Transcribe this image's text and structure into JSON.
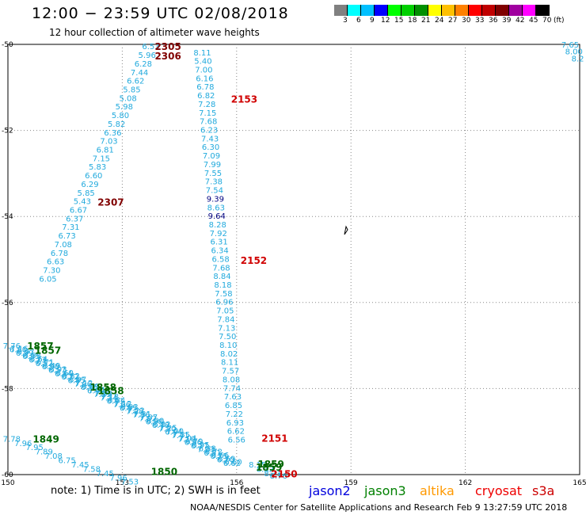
{
  "header": {
    "title": "12:00 − 23:59 UTC 02/08/2018",
    "subtitle": "12 hour collection of altimeter wave heights"
  },
  "legend": {
    "swatch_colors": [
      "#808080",
      "#00ffff",
      "#00c0ff",
      "#0000ff",
      "#00ff00",
      "#00d000",
      "#009000",
      "#ffff00",
      "#ffc000",
      "#ff8000",
      "#ff0000",
      "#c00000",
      "#800000",
      "#a000a0",
      "#ff00ff",
      "#000000"
    ],
    "labels": [
      "3",
      "6",
      "9",
      "12",
      "15",
      "18",
      "21",
      "24",
      "27",
      "30",
      "33",
      "36",
      "39",
      "42",
      "45",
      "70",
      "(ft)"
    ]
  },
  "note": "note:  1) Time is in UTC;  2) SWH is in feet",
  "satellites": [
    {
      "name": "jason2",
      "color": "#0000dd"
    },
    {
      "name": "jason3",
      "color": "#008000"
    },
    {
      "name": "altika",
      "color": "#ff9900"
    },
    {
      "name": "cryosat",
      "color": "#ee0000"
    },
    {
      "name": "s3a",
      "color": "#cc0000"
    }
  ],
  "footer": "NOAA/NESDIS Center for Satellite Applications and Research   Feb  9 13:27:59 UTC 2018",
  "chart_data": {
    "type": "scatter",
    "x_ticks": [
      "150",
      "153",
      "156",
      "159",
      "162",
      "165"
    ],
    "y_ticks": [
      "-50",
      "-52",
      "-54",
      "-56",
      "-58",
      "-60"
    ],
    "xlim": [
      150,
      165
    ],
    "ylim": [
      -60,
      -50
    ],
    "grid": "dotted",
    "labels": [
      {
        "text": "2305",
        "x": 154.2,
        "y": -50.04,
        "color": "#800000"
      },
      {
        "text": "2306",
        "x": 154.2,
        "y": -50.26,
        "color": "#800000"
      },
      {
        "text": "2307",
        "x": 152.7,
        "y": -53.66,
        "color": "#800000"
      },
      {
        "text": "2153",
        "x": 156.2,
        "y": -51.26,
        "color": "#d00000"
      },
      {
        "text": "2152",
        "x": 156.45,
        "y": -55.01,
        "color": "#d00000"
      },
      {
        "text": "2151",
        "x": 157.0,
        "y": -59.14,
        "color": "#d00000"
      },
      {
        "text": "2150",
        "x": 157.25,
        "y": -59.97,
        "color": "#d00000"
      },
      {
        "text": "1857",
        "x": 150.85,
        "y": -57.0,
        "color": "#006600"
      },
      {
        "text": "1857",
        "x": 151.05,
        "y": -57.1,
        "color": "#006600"
      },
      {
        "text": "1858",
        "x": 152.5,
        "y": -57.96,
        "color": "#006600"
      },
      {
        "text": "1858",
        "x": 152.7,
        "y": -58.04,
        "color": "#006600"
      },
      {
        "text": "1849",
        "x": 151.0,
        "y": -59.16,
        "color": "#006600"
      },
      {
        "text": "1850",
        "x": 154.1,
        "y": -59.92,
        "color": "#006600"
      },
      {
        "text": "1859",
        "x": 156.9,
        "y": -59.74,
        "color": "#006600"
      },
      {
        "text": "1859",
        "x": 156.85,
        "y": -59.82,
        "color": "#006600"
      }
    ],
    "tracks": [
      {
        "name": "2305-2307",
        "values": [
          {
            "x": 153.75,
            "y": -50.04,
            "v": "6.53"
          },
          {
            "x": 153.65,
            "y": -50.24,
            "v": "5.96"
          },
          {
            "x": 153.55,
            "y": -50.44,
            "v": "6.28"
          },
          {
            "x": 153.45,
            "y": -50.64,
            "v": "7.44"
          },
          {
            "x": 153.35,
            "y": -50.84,
            "v": "6.62"
          },
          {
            "x": 153.25,
            "y": -51.04,
            "v": "5.85"
          },
          {
            "x": 153.15,
            "y": -51.24,
            "v": "5.08"
          },
          {
            "x": 153.05,
            "y": -51.44,
            "v": "5.98"
          },
          {
            "x": 152.95,
            "y": -51.64,
            "v": "5.80"
          },
          {
            "x": 152.85,
            "y": -51.84,
            "v": "5.82"
          },
          {
            "x": 152.75,
            "y": -52.04,
            "v": "6.36"
          },
          {
            "x": 152.65,
            "y": -52.24,
            "v": "7.03"
          },
          {
            "x": 152.55,
            "y": -52.44,
            "v": "6.81"
          },
          {
            "x": 152.45,
            "y": -52.64,
            "v": "7.15"
          },
          {
            "x": 152.35,
            "y": -52.84,
            "v": "5.83"
          },
          {
            "x": 152.25,
            "y": -53.04,
            "v": "6.60"
          },
          {
            "x": 152.15,
            "y": -53.24,
            "v": "6.29"
          },
          {
            "x": 152.05,
            "y": -53.44,
            "v": "5.85"
          },
          {
            "x": 151.95,
            "y": -53.64,
            "v": "5.43"
          },
          {
            "x": 151.85,
            "y": -53.84,
            "v": "6.67"
          },
          {
            "x": 151.75,
            "y": -54.04,
            "v": "6.37"
          },
          {
            "x": 151.65,
            "y": -54.24,
            "v": "7.31"
          },
          {
            "x": 151.55,
            "y": -54.44,
            "v": "6.73"
          },
          {
            "x": 151.45,
            "y": -54.64,
            "v": "7.08"
          },
          {
            "x": 151.35,
            "y": -54.84,
            "v": "6.78"
          },
          {
            "x": 151.25,
            "y": -55.04,
            "v": "6.63"
          },
          {
            "x": 151.15,
            "y": -55.24,
            "v": "7.30"
          },
          {
            "x": 151.05,
            "y": -55.44,
            "v": "6.05"
          }
        ]
      },
      {
        "name": "2150-2153",
        "values": [
          {
            "x": 155.1,
            "y": -50.18,
            "v": "8.11"
          },
          {
            "x": 155.12,
            "y": -50.38,
            "v": "5.40"
          },
          {
            "x": 155.14,
            "y": -50.58,
            "v": "7.00"
          },
          {
            "x": 155.16,
            "y": -50.78,
            "v": "6.16"
          },
          {
            "x": 155.18,
            "y": -50.98,
            "v": "6.78"
          },
          {
            "x": 155.2,
            "y": -51.18,
            "v": "6.82"
          },
          {
            "x": 155.22,
            "y": -51.38,
            "v": "7.28"
          },
          {
            "x": 155.24,
            "y": -51.58,
            "v": "7.15"
          },
          {
            "x": 155.26,
            "y": -51.78,
            "v": "7.68"
          },
          {
            "x": 155.28,
            "y": -51.98,
            "v": "6.23"
          },
          {
            "x": 155.3,
            "y": -52.18,
            "v": "7.43"
          },
          {
            "x": 155.32,
            "y": -52.38,
            "v": "6.30"
          },
          {
            "x": 155.34,
            "y": -52.58,
            "v": "7.09"
          },
          {
            "x": 155.36,
            "y": -52.78,
            "v": "7.99"
          },
          {
            "x": 155.38,
            "y": -52.98,
            "v": "7.55"
          },
          {
            "x": 155.4,
            "y": -53.18,
            "v": "7.38"
          },
          {
            "x": 155.42,
            "y": -53.38,
            "v": "7.54"
          },
          {
            "x": 155.44,
            "y": -53.58,
            "v": "9.39",
            "c": "#000080"
          },
          {
            "x": 155.46,
            "y": -53.78,
            "v": "8.63"
          },
          {
            "x": 155.48,
            "y": -53.98,
            "v": "9.64",
            "c": "#000080"
          },
          {
            "x": 155.5,
            "y": -54.18,
            "v": "8.28"
          },
          {
            "x": 155.52,
            "y": -54.38,
            "v": "7.92"
          },
          {
            "x": 155.54,
            "y": -54.58,
            "v": "6.31"
          },
          {
            "x": 155.56,
            "y": -54.78,
            "v": "6.34"
          },
          {
            "x": 155.58,
            "y": -54.98,
            "v": "6.58"
          },
          {
            "x": 155.6,
            "y": -55.18,
            "v": "7.68"
          },
          {
            "x": 155.62,
            "y": -55.38,
            "v": "8.84"
          },
          {
            "x": 155.64,
            "y": -55.58,
            "v": "8.18"
          },
          {
            "x": 155.66,
            "y": -55.78,
            "v": "7.58"
          },
          {
            "x": 155.68,
            "y": -55.98,
            "v": "6.96"
          },
          {
            "x": 155.7,
            "y": -56.18,
            "v": "7.05"
          },
          {
            "x": 155.72,
            "y": -56.38,
            "v": "7.84"
          },
          {
            "x": 155.74,
            "y": -56.58,
            "v": "7.13"
          },
          {
            "x": 155.76,
            "y": -56.78,
            "v": "7.50"
          },
          {
            "x": 155.78,
            "y": -56.98,
            "v": "8.10"
          },
          {
            "x": 155.8,
            "y": -57.18,
            "v": "8.02"
          },
          {
            "x": 155.82,
            "y": -57.38,
            "v": "8.11"
          },
          {
            "x": 155.84,
            "y": -57.58,
            "v": "7.57"
          },
          {
            "x": 155.86,
            "y": -57.78,
            "v": "8.08"
          },
          {
            "x": 155.88,
            "y": -57.98,
            "v": "7.74"
          },
          {
            "x": 155.9,
            "y": -58.18,
            "v": "7.63"
          },
          {
            "x": 155.92,
            "y": -58.38,
            "v": "6.85"
          },
          {
            "x": 155.94,
            "y": -58.58,
            "v": "7.22"
          },
          {
            "x": 155.96,
            "y": -58.78,
            "v": "6.93"
          },
          {
            "x": 155.98,
            "y": -58.98,
            "v": "6.62"
          },
          {
            "x": 156.0,
            "y": -59.18,
            "v": "6.56"
          }
        ]
      },
      {
        "name": "1857-1859a",
        "values": [
          {
            "x": 150.1,
            "y": -57.0,
            "v": "7.76"
          },
          {
            "x": 150.27,
            "y": -57.08,
            "v": "6.80"
          },
          {
            "x": 150.44,
            "y": -57.16,
            "v": "6.99"
          },
          {
            "x": 150.61,
            "y": -57.24,
            "v": "6.95"
          },
          {
            "x": 150.78,
            "y": -57.32,
            "v": "6.73"
          },
          {
            "x": 150.95,
            "y": -57.4,
            "v": "6.52"
          },
          {
            "x": 151.12,
            "y": -57.48,
            "v": "6.98"
          },
          {
            "x": 151.29,
            "y": -57.56,
            "v": "6.57"
          },
          {
            "x": 151.46,
            "y": -57.64,
            "v": "6.44"
          },
          {
            "x": 151.63,
            "y": -57.72,
            "v": "6.72"
          },
          {
            "x": 151.8,
            "y": -57.8,
            "v": "6.85"
          },
          {
            "x": 151.97,
            "y": -57.88,
            "v": "7.06"
          },
          {
            "x": 152.14,
            "y": -57.96,
            "v": "6.78"
          },
          {
            "x": 152.31,
            "y": -58.04,
            "v": "6.92"
          },
          {
            "x": 152.48,
            "y": -58.12,
            "v": "7.29"
          },
          {
            "x": 152.65,
            "y": -58.2,
            "v": "7.14"
          },
          {
            "x": 152.82,
            "y": -58.28,
            "v": "6.91"
          },
          {
            "x": 152.99,
            "y": -58.36,
            "v": "7.06"
          },
          {
            "x": 153.16,
            "y": -58.44,
            "v": "6.85"
          },
          {
            "x": 153.33,
            "y": -58.52,
            "v": "7.28"
          },
          {
            "x": 153.5,
            "y": -58.6,
            "v": "7.36"
          },
          {
            "x": 153.67,
            "y": -58.68,
            "v": "7.02"
          },
          {
            "x": 153.84,
            "y": -58.76,
            "v": "6.98"
          },
          {
            "x": 154.01,
            "y": -58.84,
            "v": "6.78"
          },
          {
            "x": 154.18,
            "y": -58.92,
            "v": "7.20"
          },
          {
            "x": 154.35,
            "y": -59.0,
            "v": "6.94"
          },
          {
            "x": 154.52,
            "y": -59.08,
            "v": "7.41"
          },
          {
            "x": 154.69,
            "y": -59.16,
            "v": "7.10"
          },
          {
            "x": 154.86,
            "y": -59.24,
            "v": "6.86"
          },
          {
            "x": 155.03,
            "y": -59.32,
            "v": "6.77"
          },
          {
            "x": 155.2,
            "y": -59.4,
            "v": "7.03"
          },
          {
            "x": 155.37,
            "y": -59.48,
            "v": "6.81"
          },
          {
            "x": 155.54,
            "y": -59.56,
            "v": "6.75"
          },
          {
            "x": 155.71,
            "y": -59.64,
            "v": "6.70"
          },
          {
            "x": 155.88,
            "y": -59.72,
            "v": "6.62"
          }
        ]
      },
      {
        "name": "1857-1859b",
        "values": [
          {
            "x": 150.3,
            "y": -57.06,
            "v": "7.16"
          },
          {
            "x": 150.47,
            "y": -57.14,
            "v": "6.97"
          },
          {
            "x": 150.64,
            "y": -57.22,
            "v": "6.88"
          },
          {
            "x": 150.81,
            "y": -57.3,
            "v": "6.64"
          },
          {
            "x": 150.98,
            "y": -57.38,
            "v": "6.71"
          },
          {
            "x": 151.15,
            "y": -57.46,
            "v": "6.49"
          },
          {
            "x": 151.32,
            "y": -57.54,
            "v": "6.93"
          },
          {
            "x": 151.49,
            "y": -57.62,
            "v": "6.60"
          },
          {
            "x": 151.66,
            "y": -57.7,
            "v": "6.82"
          },
          {
            "x": 151.83,
            "y": -57.78,
            "v": "6.97"
          },
          {
            "x": 152.0,
            "y": -57.86,
            "v": "7.12"
          },
          {
            "x": 152.17,
            "y": -57.94,
            "v": "6.89"
          },
          {
            "x": 152.34,
            "y": -58.02,
            "v": "7.01"
          },
          {
            "x": 152.51,
            "y": -58.1,
            "v": "7.33"
          },
          {
            "x": 152.68,
            "y": -58.18,
            "v": "7.18"
          },
          {
            "x": 152.85,
            "y": -58.26,
            "v": "6.84"
          },
          {
            "x": 153.02,
            "y": -58.34,
            "v": "7.12"
          },
          {
            "x": 153.19,
            "y": -58.42,
            "v": "6.93"
          },
          {
            "x": 153.36,
            "y": -58.5,
            "v": "7.22"
          },
          {
            "x": 153.53,
            "y": -58.58,
            "v": "7.31"
          },
          {
            "x": 153.7,
            "y": -58.66,
            "v": "7.07"
          },
          {
            "x": 153.87,
            "y": -58.74,
            "v": "6.90"
          },
          {
            "x": 154.04,
            "y": -58.82,
            "v": "6.82"
          },
          {
            "x": 154.21,
            "y": -58.9,
            "v": "7.25"
          },
          {
            "x": 154.38,
            "y": -58.98,
            "v": "7.00"
          },
          {
            "x": 154.55,
            "y": -59.06,
            "v": "7.35"
          },
          {
            "x": 154.72,
            "y": -59.14,
            "v": "7.04"
          },
          {
            "x": 154.89,
            "y": -59.22,
            "v": "6.79"
          },
          {
            "x": 155.06,
            "y": -59.3,
            "v": "6.95"
          },
          {
            "x": 155.23,
            "y": -59.38,
            "v": "6.88"
          },
          {
            "x": 155.4,
            "y": -59.46,
            "v": "6.72"
          },
          {
            "x": 155.57,
            "y": -59.54,
            "v": "6.66"
          },
          {
            "x": 155.74,
            "y": -59.62,
            "v": "6.69"
          },
          {
            "x": 155.91,
            "y": -59.7,
            "v": "6.60"
          }
        ]
      },
      {
        "name": "1849-1850",
        "values": [
          {
            "x": 150.1,
            "y": -59.16,
            "v": "7.78"
          },
          {
            "x": 150.4,
            "y": -59.26,
            "v": "7.96"
          },
          {
            "x": 150.7,
            "y": -59.36,
            "v": "7.95"
          },
          {
            "x": 150.95,
            "y": -59.46,
            "v": "7.89"
          },
          {
            "x": 151.2,
            "y": -59.56,
            "v": "7.08"
          },
          {
            "x": 151.55,
            "y": -59.66,
            "v": "6.75"
          },
          {
            "x": 151.9,
            "y": -59.76,
            "v": "7.45"
          },
          {
            "x": 152.2,
            "y": -59.86,
            "v": "7.58"
          },
          {
            "x": 152.55,
            "y": -59.96,
            "v": "7.45"
          },
          {
            "x": 152.9,
            "y": -60.06,
            "v": "7.96"
          },
          {
            "x": 153.2,
            "y": -60.16,
            "v": "7.53"
          }
        ]
      },
      {
        "name": "1859-end",
        "values": [
          {
            "x": 156.55,
            "y": -59.76,
            "v": "8.15"
          },
          {
            "x": 156.75,
            "y": -59.86,
            "v": "8.32"
          },
          {
            "x": 156.95,
            "y": -59.96,
            "v": "8.71"
          },
          {
            "x": 157.1,
            "y": -60.02,
            "v": "8.76"
          }
        ]
      },
      {
        "name": "ne-corner",
        "values": [
          {
            "x": 164.75,
            "y": -50.0,
            "v": "7.65"
          },
          {
            "x": 164.85,
            "y": -50.16,
            "v": "8.00"
          },
          {
            "x": 164.95,
            "y": -50.32,
            "v": "8.2"
          }
        ]
      }
    ]
  }
}
